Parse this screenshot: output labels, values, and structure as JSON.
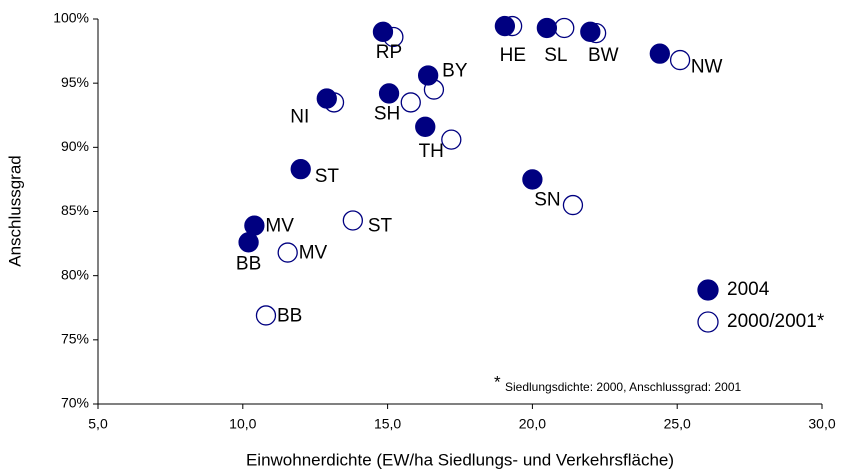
{
  "chart_data": {
    "type": "scatter",
    "x_label": "Einwohnerdichte (EW/ha Siedlungs- und Verkehrsfläche)",
    "y_label": "Anschlussgrad",
    "xlim": [
      5,
      30
    ],
    "ylim": [
      70,
      100
    ],
    "xticks": [
      {
        "value": 5,
        "label": "5,0"
      },
      {
        "value": 10,
        "label": "10,0"
      },
      {
        "value": 15,
        "label": "15,0"
      },
      {
        "value": 20,
        "label": "20,0"
      },
      {
        "value": 25,
        "label": "25,0"
      },
      {
        "value": 30,
        "label": "30,0"
      }
    ],
    "yticks": [
      {
        "value": 70,
        "label": "70%"
      },
      {
        "value": 75,
        "label": "75%"
      },
      {
        "value": 80,
        "label": "80%"
      },
      {
        "value": 85,
        "label": "85%"
      },
      {
        "value": 90,
        "label": "90%"
      },
      {
        "value": 95,
        "label": "95%"
      },
      {
        "value": 100,
        "label": "100%"
      }
    ],
    "grid": false,
    "legend": "lower right",
    "series": [
      {
        "name": "2004",
        "color": "#000080",
        "filled": true,
        "x": [
          14.84,
          19.05,
          20.5,
          22.0,
          24.4,
          16.4,
          15.05,
          12.9,
          16.3,
          12.0,
          20.0,
          10.4,
          10.2
        ],
        "values": [
          99.0,
          99.45,
          99.3,
          99.0,
          97.3,
          95.6,
          94.2,
          93.8,
          91.6,
          88.3,
          87.5,
          83.9,
          82.6
        ],
        "labels": [
          "RP",
          "HE",
          "SL",
          "BW",
          "NW",
          "BY",
          "SH",
          "NI",
          "TH",
          "ST",
          "SN",
          "MV",
          "BB"
        ]
      },
      {
        "name": "2000/2001*",
        "color": "#000080",
        "filled": false,
        "x": [
          15.2,
          19.3,
          21.1,
          22.2,
          25.1,
          16.6,
          15.8,
          13.15,
          17.2,
          13.8,
          21.4,
          11.55,
          10.8
        ],
        "values": [
          98.6,
          99.45,
          99.3,
          98.9,
          96.8,
          94.5,
          93.5,
          93.5,
          90.6,
          84.3,
          85.5,
          81.8,
          76.9
        ],
        "labels": [
          null,
          null,
          null,
          null,
          null,
          null,
          null,
          null,
          null,
          "ST",
          null,
          "MV",
          "BB"
        ]
      }
    ],
    "footnote_mark": "*",
    "footnote": "Siedlungsdichte: 2000, Anschlussgrad: 2001"
  }
}
